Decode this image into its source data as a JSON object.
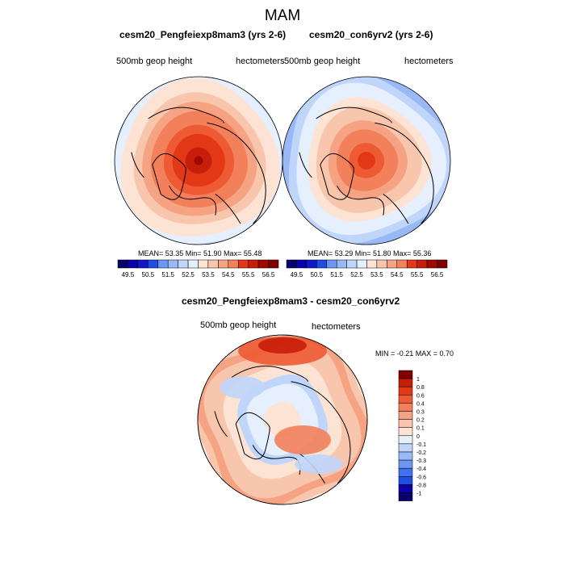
{
  "figure": {
    "season_title": "MAM"
  },
  "palette": {
    "colors": [
      "#08006b",
      "#0c00a8",
      "#0f19c8",
      "#1f4fe0",
      "#3f71f0",
      "#6b97f3",
      "#98b9f6",
      "#bfd5fa",
      "#e5effd",
      "#fce3d4",
      "#f8c5ad",
      "#f5a383",
      "#f2805a",
      "#ed5a33",
      "#e23816",
      "#c61e0a",
      "#a00800",
      "#800000"
    ],
    "coast_color": "#000000"
  },
  "panels": [
    {
      "title": "cesm20_Pengfeiexp8mam3 (yrs 2-6)",
      "variable": "500mb geop height",
      "units": "hectometers",
      "stats": "MEAN=  53.35  Min=  51.90  Max=  55.48",
      "field": {
        "base": 7,
        "wave": 0.8,
        "shift": 0
      }
    },
    {
      "title": "cesm20_con6yrv2 (yrs 2-6)",
      "variable": "500mb geop height",
      "units": "hectometers",
      "stats": "MEAN=  53.29  Min=  51.80  Max=  55.36",
      "field": {
        "base": 6,
        "wave": 1.0,
        "shift": 0.25
      }
    }
  ],
  "colorbar_top": {
    "labels": [
      "49.5",
      "50.5",
      "51.5",
      "52.5",
      "53.5",
      "54.5",
      "55.5",
      "56.5"
    ],
    "n_boxes": 16
  },
  "diff_panel": {
    "title": "cesm20_Pengfeiexp8mam3 - cesm20_con6yrv2",
    "variable": "500mb geop height",
    "units": "hectometers",
    "minmax": "MIN =  -0.21 MAX =   0.70"
  },
  "colorbar_diff": {
    "labels": [
      "1",
      "0.8",
      "0.6",
      "0.4",
      "0.3",
      "0.2",
      "0.1",
      "0",
      "-0.1",
      "-0.2",
      "-0.3",
      "-0.4",
      "-0.6",
      "-0.8",
      "-1"
    ],
    "colors": [
      "#800000",
      "#c61e0a",
      "#e23816",
      "#ed5a33",
      "#f2805a",
      "#f5a383",
      "#f8c5ad",
      "#fce3d4",
      "#e5effd",
      "#bfd5fa",
      "#98b9f6",
      "#6b97f3",
      "#3f71f0",
      "#1f4fe0",
      "#0c00a8",
      "#08006b"
    ]
  }
}
